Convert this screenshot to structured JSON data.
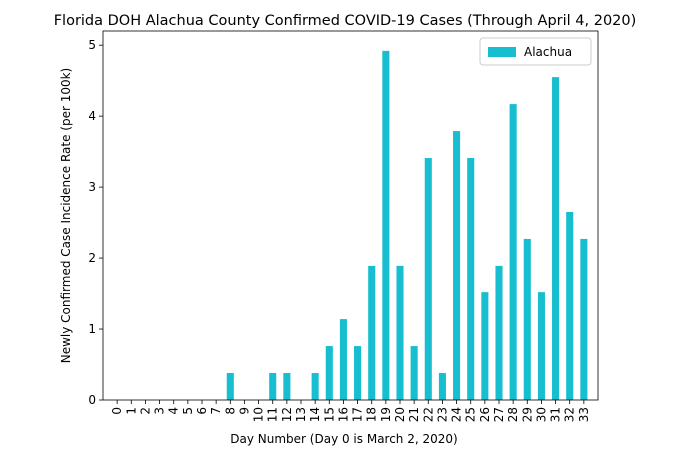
{
  "chart_data": {
    "type": "bar",
    "title": "Florida DOH Alachua County Confirmed COVID-19 Cases (Through April 4, 2020)",
    "xlabel": "Day Number (Day 0 is March 2, 2020)",
    "ylabel": "Newly Confirmed Case Incidence Rate (per 100k)",
    "categories": [
      "0",
      "1",
      "2",
      "3",
      "4",
      "5",
      "6",
      "7",
      "8",
      "9",
      "10",
      "11",
      "12",
      "13",
      "14",
      "15",
      "16",
      "17",
      "18",
      "19",
      "20",
      "21",
      "22",
      "23",
      "24",
      "25",
      "26",
      "27",
      "28",
      "29",
      "30",
      "31",
      "32",
      "33"
    ],
    "series": [
      {
        "name": "Alachua",
        "color": "#17becf",
        "values": [
          0,
          0,
          0,
          0,
          0,
          0,
          0,
          0,
          0.38,
          0,
          0,
          0.38,
          0.38,
          0,
          0.38,
          0.76,
          1.14,
          0.76,
          1.89,
          4.92,
          1.89,
          0.76,
          3.41,
          0.38,
          3.79,
          3.41,
          1.52,
          1.89,
          4.17,
          2.27,
          1.52,
          4.55,
          2.65,
          2.27
        ]
      }
    ],
    "yticks": [
      "0",
      "1",
      "2",
      "3",
      "4",
      "5"
    ],
    "ylim": [
      0,
      5.2
    ],
    "legend": "top-right",
    "grid": false
  }
}
